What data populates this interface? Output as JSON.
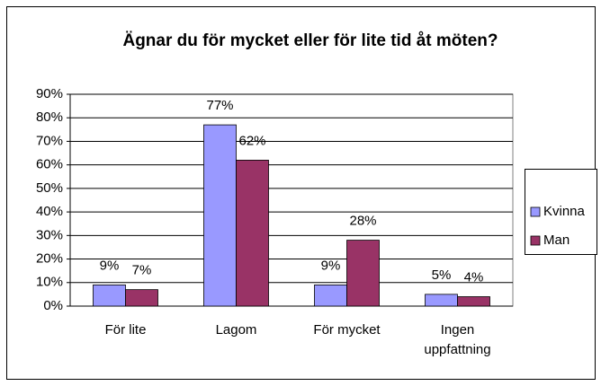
{
  "chart_data": {
    "type": "bar",
    "title": "Ägnar du för mycket eller för lite tid åt möten?",
    "categories": [
      "För lite",
      "Lagom",
      "För mycket",
      "Ingen uppfattning"
    ],
    "series": [
      {
        "name": "Kvinna",
        "color": "#9999ff",
        "values": [
          9,
          77,
          9,
          5
        ],
        "value_labels": [
          "9%",
          "77%",
          "9%",
          "5%"
        ]
      },
      {
        "name": "Man",
        "color": "#993366",
        "values": [
          7,
          62,
          28,
          4
        ],
        "value_labels": [
          "7%",
          "62%",
          "28%",
          "4%"
        ]
      }
    ],
    "ylim": [
      0,
      90
    ],
    "yticks": [
      {
        "value": 0,
        "label": "0%"
      },
      {
        "value": 10,
        "label": "10%"
      },
      {
        "value": 20,
        "label": "20%"
      },
      {
        "value": 30,
        "label": "30%"
      },
      {
        "value": 40,
        "label": "40%"
      },
      {
        "value": 50,
        "label": "50%"
      },
      {
        "value": 60,
        "label": "60%"
      },
      {
        "value": 70,
        "label": "70%"
      },
      {
        "value": 80,
        "label": "80%"
      },
      {
        "value": 90,
        "label": "90%"
      }
    ],
    "grid": true,
    "legend": "right"
  }
}
